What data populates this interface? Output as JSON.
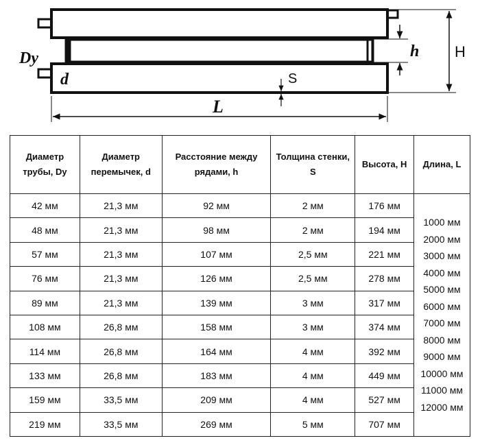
{
  "diagram": {
    "labels": {
      "dy": "Dy",
      "d": "d",
      "s": "S",
      "h": "h",
      "height": "H",
      "length": "L"
    }
  },
  "table": {
    "headers": [
      "Диаметр трубы, Dy",
      "Диаметр перемычек, d",
      "Расстояние между рядами, h",
      "Толщина стенки, S",
      "Высота, H",
      "Длина, L"
    ],
    "rows": [
      [
        "42 мм",
        "21,3 мм",
        "92 мм",
        "2 мм",
        "176 мм"
      ],
      [
        "48 мм",
        "21,3 мм",
        "98 мм",
        "2 мм",
        "194 мм"
      ],
      [
        "57 мм",
        "21,3 мм",
        "107 мм",
        "2,5 мм",
        "221 мм"
      ],
      [
        "76 мм",
        "21,3 мм",
        "126 мм",
        "2,5 мм",
        "278 мм"
      ],
      [
        "89 мм",
        "21,3 мм",
        "139 мм",
        "3 мм",
        "317 мм"
      ],
      [
        "108 мм",
        "26,8 мм",
        "158 мм",
        "3 мм",
        "374 мм"
      ],
      [
        "114 мм",
        "26,8 мм",
        "164 мм",
        "4 мм",
        "392 мм"
      ],
      [
        "133 мм",
        "26,8 мм",
        "183 мм",
        "4 мм",
        "449 мм"
      ],
      [
        "159 мм",
        "33,5 мм",
        "209 мм",
        "4 мм",
        "527 мм"
      ],
      [
        "219 мм",
        "33,5 мм",
        "269 мм",
        "5 мм",
        "707 мм"
      ]
    ],
    "lengths": [
      "1000 мм",
      "2000 мм",
      "3000 мм",
      "4000 мм",
      "5000 мм",
      "6000 мм",
      "7000 мм",
      "8000 мм",
      "9000 мм",
      "10000 мм",
      "11000 мм",
      "12000 мм"
    ]
  }
}
